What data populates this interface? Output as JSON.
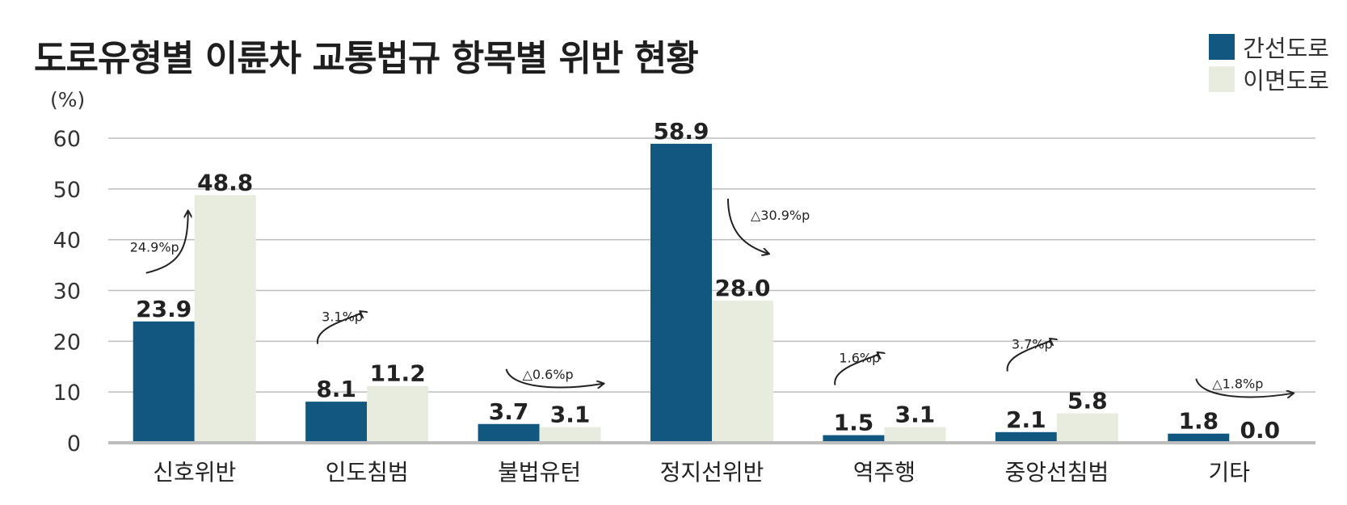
{
  "chart_data": {
    "type": "bar",
    "title": "도로유형별 이륜차 교통법규 항목별 위반 현황",
    "ylabel": "(%)",
    "xlabel": "",
    "ylim": [
      0,
      60
    ],
    "yticks": [
      0,
      10,
      20,
      30,
      40,
      50,
      60
    ],
    "grid": true,
    "legend_position": "top-right",
    "categories": [
      "신호위반",
      "인도침범",
      "불법유턴",
      "정지선위반",
      "역주행",
      "중앙선침범",
      "기타"
    ],
    "series": [
      {
        "name": "간선도로",
        "color": "#12577f",
        "values": [
          23.9,
          8.1,
          3.7,
          58.9,
          1.5,
          2.1,
          1.8
        ]
      },
      {
        "name": "이면도로",
        "color": "#e8ecdf",
        "values": [
          48.8,
          11.2,
          3.1,
          28.0,
          3.1,
          5.8,
          0.0
        ]
      }
    ],
    "annotations": [
      "24.9%p",
      "3.1%p",
      "△0.6%p",
      "△30.9%p",
      "1.6%p",
      "3.7%p",
      "△1.8%p"
    ]
  }
}
